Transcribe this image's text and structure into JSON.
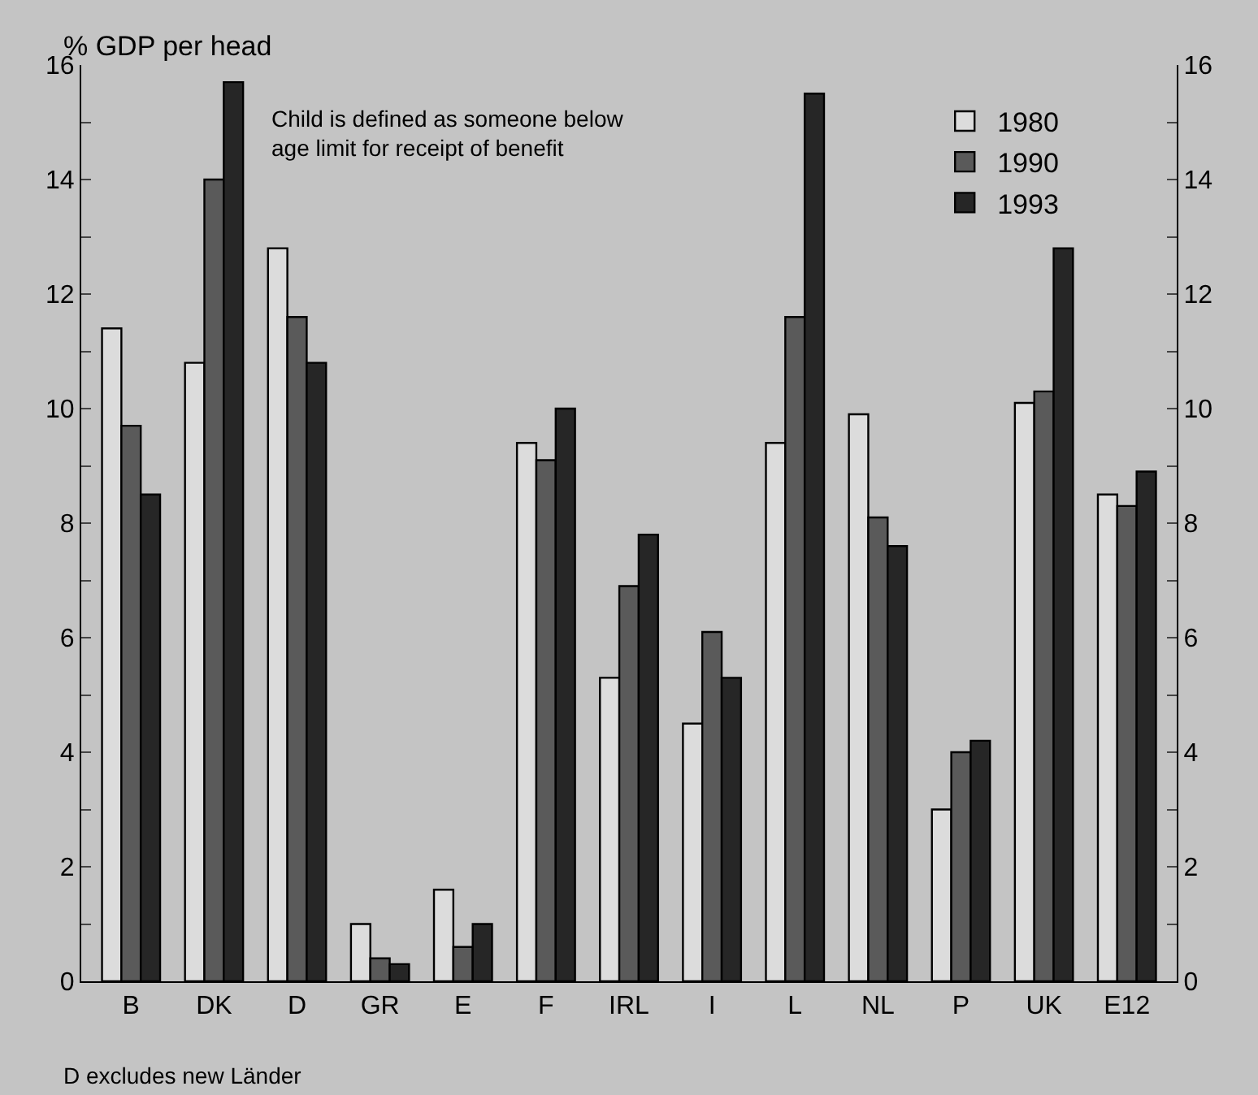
{
  "chart_data": {
    "type": "bar",
    "ylabel": "% GDP per head",
    "categories": [
      "B",
      "DK",
      "D",
      "GR",
      "E",
      "F",
      "IRL",
      "I",
      "L",
      "NL",
      "P",
      "UK",
      "E12"
    ],
    "series": [
      {
        "name": "1980",
        "color": "#dcdcdc",
        "values": [
          11.4,
          10.8,
          12.8,
          1.0,
          1.6,
          9.4,
          5.3,
          4.5,
          9.4,
          9.9,
          3.0,
          10.1,
          8.5
        ]
      },
      {
        "name": "1990",
        "color": "#5a5a5a",
        "values": [
          9.7,
          14.0,
          11.6,
          0.4,
          0.6,
          9.1,
          6.9,
          6.1,
          11.6,
          8.1,
          4.0,
          10.3,
          8.3
        ]
      },
      {
        "name": "1993",
        "color": "#262626",
        "values": [
          8.5,
          15.7,
          10.8,
          0.3,
          1.0,
          10.0,
          7.8,
          5.3,
          15.5,
          7.6,
          4.2,
          12.8,
          8.9
        ]
      }
    ],
    "ylim": [
      0,
      16
    ],
    "yticks": [
      0,
      {
        "value": 1,
        "label": null
      },
      2,
      {
        "value": 3,
        "label": null
      },
      4,
      {
        "value": 5,
        "label": null
      },
      6,
      {
        "value": 7,
        "label": null
      },
      8,
      {
        "value": 9,
        "label": null
      },
      10,
      {
        "value": 11,
        "label": null
      },
      12,
      {
        "value": 13,
        "label": null
      },
      14,
      {
        "value": 15,
        "label": null
      },
      16
    ],
    "y2lim": [
      0,
      16
    ],
    "y2ticks": [
      0,
      {
        "value": 1,
        "label": null
      },
      2,
      {
        "value": 3,
        "label": null
      },
      4,
      {
        "value": 5,
        "label": null
      },
      6,
      {
        "value": 7,
        "label": null
      },
      8,
      {
        "value": 9,
        "label": null
      },
      10,
      {
        "value": 11,
        "label": null
      },
      12,
      {
        "value": 13,
        "label": null
      },
      14,
      {
        "value": 15,
        "label": null
      },
      16
    ],
    "annotations": [
      "Child is defined as someone below\nage limit for receipt of benefit",
      "D excludes new Länder"
    ],
    "legend": "top right",
    "grid": false
  }
}
